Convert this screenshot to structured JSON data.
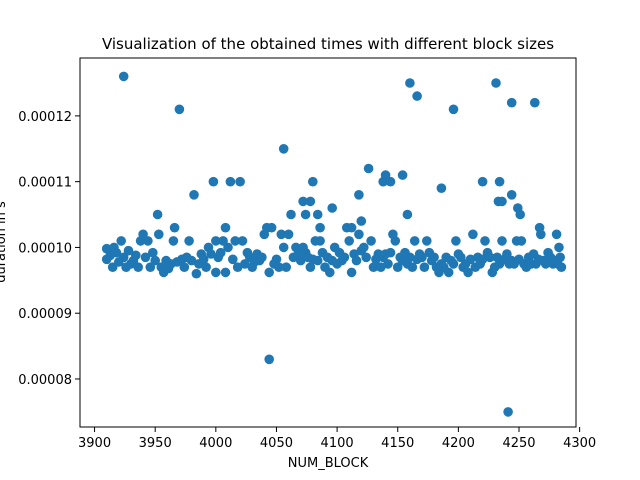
{
  "chart_data": {
    "type": "scatter",
    "title": "Visualization of the obtained times with different block sizes",
    "xlabel": "NUM_BLOCK",
    "ylabel": "duration in s",
    "xlim": [
      3888,
      4297
    ],
    "ylim": [
      7.27e-05,
      0.0001288
    ],
    "xticks": [
      3900,
      3950,
      4000,
      4050,
      4100,
      4150,
      4200,
      4250,
      4300
    ],
    "xtick_labels": [
      "3900",
      "3950",
      "4000",
      "4050",
      "4100",
      "4150",
      "4200",
      "4250",
      "4300"
    ],
    "yticks": [
      8e-05,
      9e-05,
      0.0001,
      0.00011,
      0.00012
    ],
    "ytick_labels": [
      "0.00008",
      "0.00009",
      "0.00010",
      "0.00011",
      "0.00012"
    ],
    "grid": false,
    "marker_color": "#1f77b4",
    "points": [
      [
        3924,
        0.000126
      ],
      [
        3970,
        0.000121
      ],
      [
        3982,
        0.000108
      ],
      [
        3998,
        0.00011
      ],
      [
        4012,
        0.00011
      ],
      [
        4020,
        0.00011
      ],
      [
        3952,
        0.000105
      ],
      [
        3953,
        0.000102
      ],
      [
        3966,
        0.000103
      ],
      [
        3978,
        0.000101
      ],
      [
        4008,
        0.000103
      ],
      [
        4044,
        8.3e-05
      ],
      [
        4056,
        0.000115
      ],
      [
        4062,
        0.000105
      ],
      [
        4072,
        0.000107
      ],
      [
        4074,
        0.000105
      ],
      [
        4078,
        0.000107
      ],
      [
        4080,
        0.00011
      ],
      [
        4084,
        0.000105
      ],
      [
        4086,
        0.000103
      ],
      [
        4096,
        0.000106
      ],
      [
        4108,
        0.000103
      ],
      [
        4112,
        0.000103
      ],
      [
        4118,
        0.000108
      ],
      [
        4120,
        0.000104
      ],
      [
        4126,
        0.000112
      ],
      [
        4138,
        0.00011
      ],
      [
        4140,
        0.000111
      ],
      [
        4144,
        0.00011
      ],
      [
        4154,
        0.000111
      ],
      [
        4158,
        0.000105
      ],
      [
        4160,
        0.000125
      ],
      [
        4166,
        0.000123
      ],
      [
        4186,
        0.000109
      ],
      [
        4196,
        0.000121
      ],
      [
        4220,
        0.00011
      ],
      [
        4231,
        0.000125
      ],
      [
        4233,
        0.000107
      ],
      [
        4234,
        0.00011
      ],
      [
        4236,
        0.000107
      ],
      [
        4241,
        7.5e-05
      ],
      [
        4244,
        0.000122
      ],
      [
        4244,
        0.000108
      ],
      [
        4249,
        0.000106
      ],
      [
        4251,
        0.000105
      ],
      [
        4263,
        0.000122
      ],
      [
        4267,
        0.000103
      ],
      [
        4281,
        0.000102
      ],
      [
        3910,
        9.98e-05
      ],
      [
        3910,
        9.82e-05
      ],
      [
        3913,
        9.88e-05
      ],
      [
        3915,
        9.7e-05
      ],
      [
        3916,
        0.0001
      ],
      [
        3918,
        9.92e-05
      ],
      [
        3920,
        9.78e-05
      ],
      [
        3922,
        0.000101
      ],
      [
        3924,
        9.85e-05
      ],
      [
        3926,
        9.7e-05
      ],
      [
        3928,
        9.95e-05
      ],
      [
        3930,
        9.75e-05
      ],
      [
        3932,
        9.8e-05
      ],
      [
        3934,
        9.88e-05
      ],
      [
        3936,
        9.7e-05
      ],
      [
        3938,
        0.000101
      ],
      [
        3940,
        0.000102
      ],
      [
        3942,
        9.85e-05
      ],
      [
        3944,
        0.000101
      ],
      [
        3946,
        9.7e-05
      ],
      [
        3948,
        9.92e-05
      ],
      [
        3950,
        9.8e-05
      ],
      [
        3955,
        9.7e-05
      ],
      [
        3957,
        9.62e-05
      ],
      [
        3959,
        9.8e-05
      ],
      [
        3961,
        9.68e-05
      ],
      [
        3963,
        9.75e-05
      ],
      [
        3965,
        0.000101
      ],
      [
        3968,
        9.78e-05
      ],
      [
        3972,
        9.82e-05
      ],
      [
        3974,
        9.7e-05
      ],
      [
        3976,
        9.85e-05
      ],
      [
        3980,
        9.8e-05
      ],
      [
        3984,
        9.6e-05
      ],
      [
        3986,
        9.75e-05
      ],
      [
        3988,
        9.9e-05
      ],
      [
        3990,
        9.82e-05
      ],
      [
        3992,
        9.7e-05
      ],
      [
        3994,
        0.0001
      ],
      [
        3996,
        9.9e-05
      ],
      [
        4000,
        0.000101
      ],
      [
        4000,
        9.62e-05
      ],
      [
        4002,
        9.85e-05
      ],
      [
        4004,
        9.92e-05
      ],
      [
        4006,
        0.000101
      ],
      [
        4008,
        9.62e-05
      ],
      [
        4010,
        0.0001
      ],
      [
        4014,
        9.82e-05
      ],
      [
        4016,
        0.000101
      ],
      [
        4018,
        9.7e-05
      ],
      [
        4022,
        0.000101
      ],
      [
        4024,
        9.75e-05
      ],
      [
        4026,
        9.92e-05
      ],
      [
        4028,
        9.85e-05
      ],
      [
        4030,
        9.7e-05
      ],
      [
        4032,
        9.78e-05
      ],
      [
        4034,
        9.9e-05
      ],
      [
        4036,
        9.8e-05
      ],
      [
        4038,
        9.85e-05
      ],
      [
        4040,
        0.000102
      ],
      [
        4042,
        0.000103
      ],
      [
        4044,
        9.62e-05
      ],
      [
        4046,
        0.000103
      ],
      [
        4048,
        9.75e-05
      ],
      [
        4050,
        9.82e-05
      ],
      [
        4052,
        9.7e-05
      ],
      [
        4054,
        0.000102
      ],
      [
        4056,
        0.0001
      ],
      [
        4058,
        9.7e-05
      ],
      [
        4060,
        0.000102
      ],
      [
        4064,
        9.85e-05
      ],
      [
        4066,
        0.0001
      ],
      [
        4068,
        9.9e-05
      ],
      [
        4070,
        9.8e-05
      ],
      [
        4072,
        0.0001
      ],
      [
        4074,
        9.92e-05
      ],
      [
        4076,
        9.85e-05
      ],
      [
        4078,
        9.7e-05
      ],
      [
        4080,
        9.82e-05
      ],
      [
        4082,
        0.000101
      ],
      [
        4084,
        9.8e-05
      ],
      [
        4086,
        0.000101
      ],
      [
        4088,
        9.92e-05
      ],
      [
        4090,
        9.7e-05
      ],
      [
        4092,
        9.85e-05
      ],
      [
        4094,
        9.62e-05
      ],
      [
        4096,
        9.8e-05
      ],
      [
        4098,
        0.0001
      ],
      [
        4100,
        9.75e-05
      ],
      [
        4102,
        9.92e-05
      ],
      [
        4104,
        9.8e-05
      ],
      [
        4106,
        9.85e-05
      ],
      [
        4110,
        0.000101
      ],
      [
        4112,
        9.62e-05
      ],
      [
        4114,
        9.9e-05
      ],
      [
        4116,
        9.8e-05
      ],
      [
        4118,
        0.000102
      ],
      [
        4120,
        9.95e-05
      ],
      [
        4122,
        0.0001
      ],
      [
        4124,
        9.85e-05
      ],
      [
        4128,
        0.000101
      ],
      [
        4130,
        9.7e-05
      ],
      [
        4132,
        9.82e-05
      ],
      [
        4134,
        9.9e-05
      ],
      [
        4136,
        9.7e-05
      ],
      [
        4138,
        9.85e-05
      ],
      [
        4140,
        9.9e-05
      ],
      [
        4142,
        9.75e-05
      ],
      [
        4144,
        9.92e-05
      ],
      [
        4146,
        0.000102
      ],
      [
        4148,
        0.000101
      ],
      [
        4150,
        9.7e-05
      ],
      [
        4152,
        9.85e-05
      ],
      [
        4154,
        9.8e-05
      ],
      [
        4156,
        9.92e-05
      ],
      [
        4158,
        9.75e-05
      ],
      [
        4160,
        9.85e-05
      ],
      [
        4162,
        9.7e-05
      ],
      [
        4164,
        0.000101
      ],
      [
        4166,
        9.82e-05
      ],
      [
        4168,
        9.9e-05
      ],
      [
        4170,
        9.85e-05
      ],
      [
        4172,
        9.7e-05
      ],
      [
        4174,
        0.000101
      ],
      [
        4176,
        9.92e-05
      ],
      [
        4178,
        9.8e-05
      ],
      [
        4180,
        9.85e-05
      ],
      [
        4182,
        9.7e-05
      ],
      [
        4184,
        9.62e-05
      ],
      [
        4186,
        9.75e-05
      ],
      [
        4188,
        9.7e-05
      ],
      [
        4190,
        9.85e-05
      ],
      [
        4192,
        9.62e-05
      ],
      [
        4194,
        9.8e-05
      ],
      [
        4196,
        9.75e-05
      ],
      [
        4198,
        0.000101
      ],
      [
        4200,
        9.9e-05
      ],
      [
        4202,
        9.85e-05
      ],
      [
        4204,
        9.7e-05
      ],
      [
        4206,
        9.75e-05
      ],
      [
        4208,
        9.62e-05
      ],
      [
        4210,
        9.82e-05
      ],
      [
        4212,
        0.000102
      ],
      [
        4214,
        9.7e-05
      ],
      [
        4216,
        9.85e-05
      ],
      [
        4218,
        9.75e-05
      ],
      [
        4220,
        9.82e-05
      ],
      [
        4222,
        0.000101
      ],
      [
        4224,
        9.92e-05
      ],
      [
        4226,
        9.85e-05
      ],
      [
        4228,
        9.62e-05
      ],
      [
        4230,
        9.7e-05
      ],
      [
        4232,
        9.85e-05
      ],
      [
        4234,
        9.75e-05
      ],
      [
        4236,
        0.000101
      ],
      [
        4238,
        9.82e-05
      ],
      [
        4240,
        9.9e-05
      ],
      [
        4242,
        9.75e-05
      ],
      [
        4244,
        9.8e-05
      ],
      [
        4246,
        9.75e-05
      ],
      [
        4248,
        0.000101
      ],
      [
        4250,
        9.82e-05
      ],
      [
        4252,
        0.000101
      ],
      [
        4254,
        9.75e-05
      ],
      [
        4256,
        9.7e-05
      ],
      [
        4258,
        9.85e-05
      ],
      [
        4260,
        9.75e-05
      ],
      [
        4262,
        9.9e-05
      ],
      [
        4264,
        9.75e-05
      ],
      [
        4266,
        9.82e-05
      ],
      [
        4268,
        0.000102
      ],
      [
        4270,
        9.8e-05
      ],
      [
        4272,
        9.75e-05
      ],
      [
        4274,
        9.92e-05
      ],
      [
        4276,
        9.85e-05
      ],
      [
        4278,
        9.75e-05
      ],
      [
        4280,
        9.8e-05
      ],
      [
        4282,
        9.75e-05
      ],
      [
        4283,
        0.0001
      ],
      [
        4284,
        9.85e-05
      ],
      [
        4285,
        9.7e-05
      ]
    ]
  }
}
